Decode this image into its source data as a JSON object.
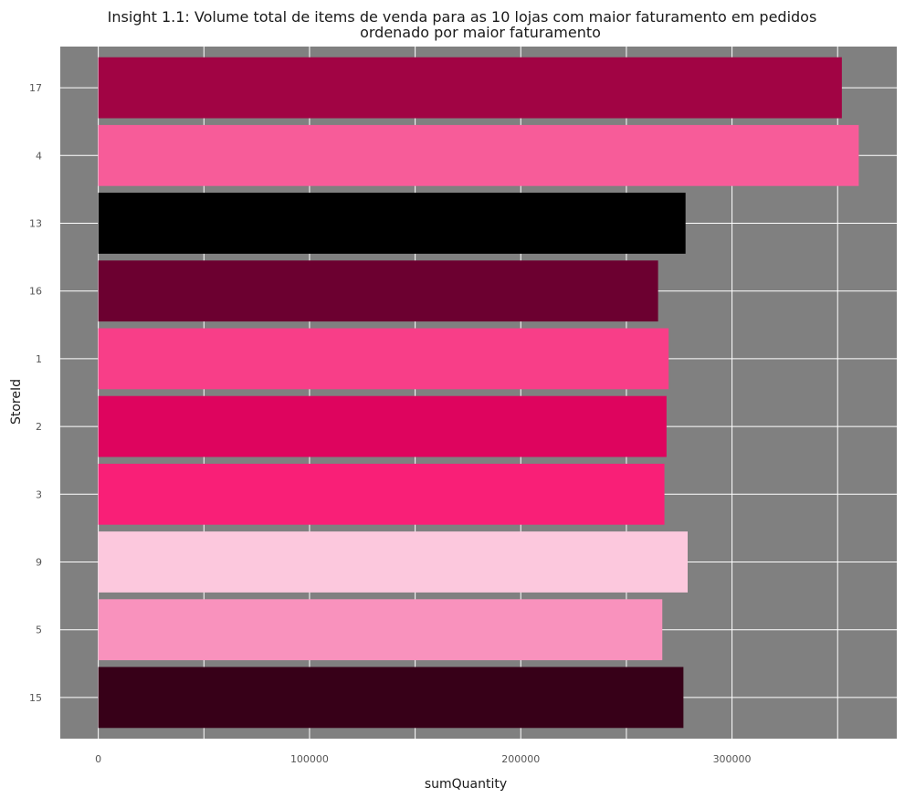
{
  "chart_data": {
    "type": "bar",
    "orientation": "horizontal",
    "title_lines": [
      "Insight 1.1: Volume total de items de venda para as 10 lojas com maior faturamento em pedidos",
      "ordenado por maior faturamento"
    ],
    "xlabel": "sumQuantity",
    "ylabel": "StoreId",
    "categories": [
      "17",
      "4",
      "13",
      "16",
      "1",
      "2",
      "3",
      "9",
      "5",
      "15"
    ],
    "values": [
      352000,
      360000,
      278000,
      265000,
      270000,
      269000,
      268000,
      279000,
      267000,
      277000
    ],
    "bar_colors": [
      "#a10444",
      "#f75c99",
      "#000000",
      "#6c0030",
      "#f83e88",
      "#de045e",
      "#f91f77",
      "#fcc8dd",
      "#f992bd",
      "#370018"
    ],
    "x_ticks": [
      0,
      100000,
      200000,
      300000
    ],
    "x_tick_labels": [
      "0",
      "100000",
      "200000",
      "300000"
    ],
    "xlim": [
      -18000,
      378000
    ],
    "grid": true,
    "background_color": "#808080",
    "grid_color": "#ffffff"
  }
}
